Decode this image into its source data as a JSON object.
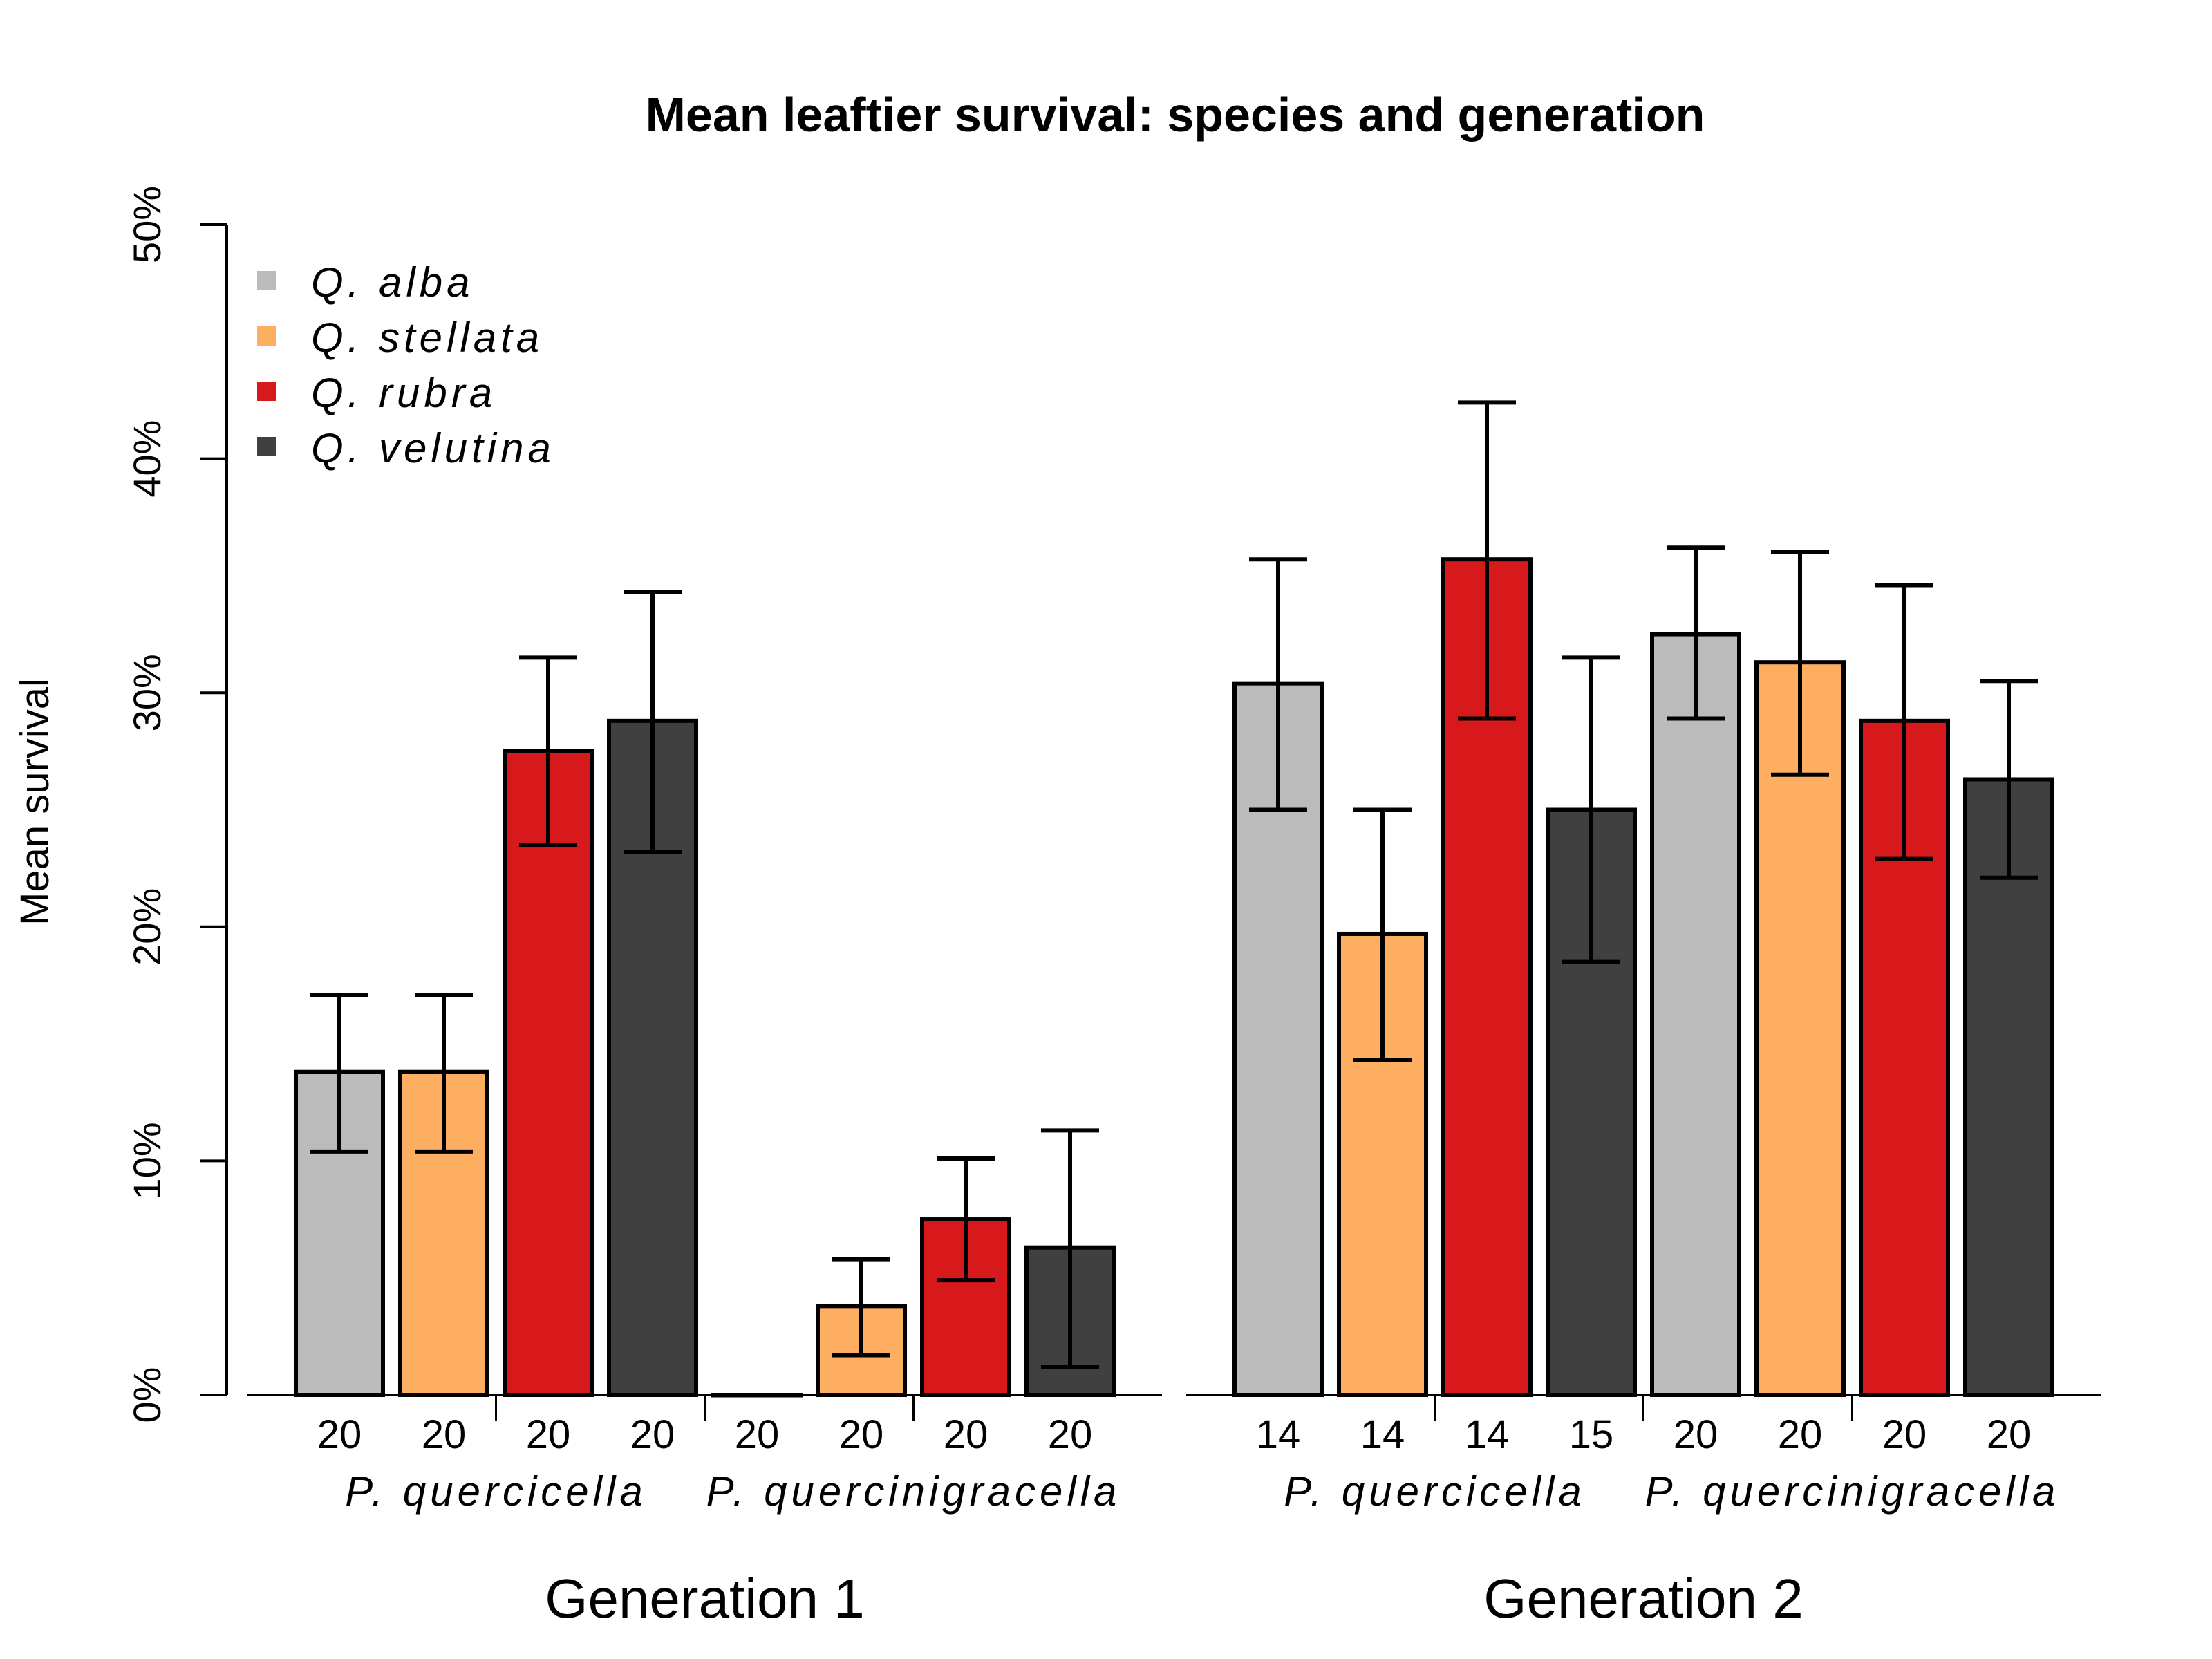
{
  "chart_data": {
    "type": "bar",
    "title": "Mean leaftier survival: species and generation",
    "ylabel": "Mean survival",
    "xlabel": "",
    "ylim": [
      0,
      0.5
    ],
    "yticks": [
      "0%",
      "10%",
      "20%",
      "30%",
      "40%",
      "50%"
    ],
    "legend": {
      "position": "top-left",
      "entries": [
        {
          "name": "Q. alba",
          "color": "#BBBBBB"
        },
        {
          "name": "Q. stellata",
          "color": "#FDAE61"
        },
        {
          "name": "Q. rubra",
          "color": "#D7191C"
        },
        {
          "name": "Q. velutina",
          "color": "#404040"
        }
      ]
    },
    "groups": [
      {
        "generation": "Generation 1",
        "subgroups": [
          {
            "name": "P. quercicella",
            "bars": [
              {
                "oak": "Q. alba",
                "value": 0.138,
                "lower": 0.104,
                "upper": 0.171,
                "n": "20"
              },
              {
                "oak": "Q. stellata",
                "value": 0.138,
                "lower": 0.104,
                "upper": 0.171,
                "n": "20"
              },
              {
                "oak": "Q. rubra",
                "value": 0.275,
                "lower": 0.235,
                "upper": 0.315,
                "n": "20"
              },
              {
                "oak": "Q. velutina",
                "value": 0.288,
                "lower": 0.232,
                "upper": 0.343,
                "n": "20"
              }
            ]
          },
          {
            "name": "P. quercinigracella",
            "bars": [
              {
                "oak": "Q. alba",
                "value": 0.0,
                "lower": null,
                "upper": null,
                "n": "20"
              },
              {
                "oak": "Q. stellata",
                "value": 0.038,
                "lower": 0.017,
                "upper": 0.058,
                "n": "20"
              },
              {
                "oak": "Q. rubra",
                "value": 0.075,
                "lower": 0.049,
                "upper": 0.101,
                "n": "20"
              },
              {
                "oak": "Q. velutina",
                "value": 0.063,
                "lower": 0.012,
                "upper": 0.113,
                "n": "20"
              }
            ]
          }
        ]
      },
      {
        "generation": "Generation 2",
        "subgroups": [
          {
            "name": "P. quercicella",
            "bars": [
              {
                "oak": "Q. alba",
                "value": 0.304,
                "lower": 0.25,
                "upper": 0.357,
                "n": "14"
              },
              {
                "oak": "Q. stellata",
                "value": 0.197,
                "lower": 0.143,
                "upper": 0.25,
                "n": "14"
              },
              {
                "oak": "Q. rubra",
                "value": 0.357,
                "lower": 0.289,
                "upper": 0.424,
                "n": "14"
              },
              {
                "oak": "Q. velutina",
                "value": 0.25,
                "lower": 0.185,
                "upper": 0.315,
                "n": "15"
              }
            ]
          },
          {
            "name": "P. quercinigracella",
            "bars": [
              {
                "oak": "Q. alba",
                "value": 0.325,
                "lower": 0.289,
                "upper": 0.362,
                "n": "20"
              },
              {
                "oak": "Q. stellata",
                "value": 0.313,
                "lower": 0.265,
                "upper": 0.36,
                "n": "20"
              },
              {
                "oak": "Q. rubra",
                "value": 0.288,
                "lower": 0.229,
                "upper": 0.346,
                "n": "20"
              },
              {
                "oak": "Q. velutina",
                "value": 0.263,
                "lower": 0.221,
                "upper": 0.305,
                "n": "20"
              }
            ]
          }
        ]
      }
    ]
  }
}
